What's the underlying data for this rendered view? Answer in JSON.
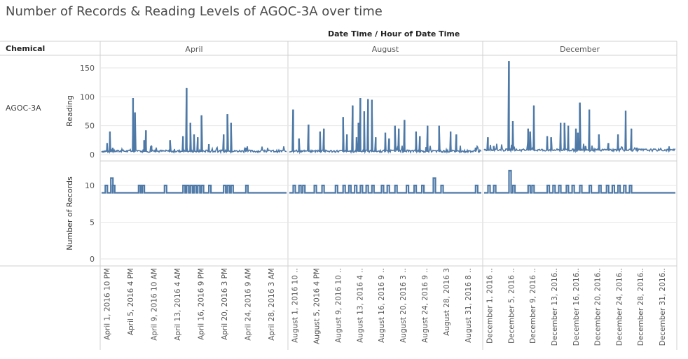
{
  "title": "Number of Records & Reading Levels of AGOC-3A over time",
  "column_header": "Date Time",
  "column_subheader": "Hour of Date Time",
  "column_sep": "/",
  "row_header": "Chemical",
  "row_label": "AGOC-3A",
  "months": [
    "April",
    "August",
    "December"
  ],
  "colors": {
    "series": "#4e79a7",
    "grid": "#e6e6e6",
    "border": "#d0d0d0",
    "axis_text": "#555555"
  },
  "chart_data": [
    {
      "type": "line",
      "ylabel": "Reading",
      "yticks": [
        0,
        50,
        100,
        150
      ],
      "ylim": [
        0,
        160
      ],
      "panels": [
        {
          "month": "April",
          "x_ticks": [
            "April 1, 2016 10 PM",
            "April 5, 2016 4 PM",
            "April 9, 2016 10 AM",
            "April 13, 2016 4 AM",
            "April 16, 2016 9 PM",
            "April 20, 2016 3 PM",
            "April 24, 2016 9 AM",
            "April 28, 2016 3 AM"
          ],
          "baseline": 5,
          "spikes": [
            [
              0.03,
              20
            ],
            [
              0.045,
              40
            ],
            [
              0.06,
              12
            ],
            [
              0.17,
              98
            ],
            [
              0.18,
              73
            ],
            [
              0.23,
              25
            ],
            [
              0.24,
              42
            ],
            [
              0.27,
              15
            ],
            [
              0.37,
              25
            ],
            [
              0.44,
              32
            ],
            [
              0.46,
              115
            ],
            [
              0.48,
              55
            ],
            [
              0.5,
              35
            ],
            [
              0.52,
              30
            ],
            [
              0.54,
              68
            ],
            [
              0.58,
              18
            ],
            [
              0.66,
              35
            ],
            [
              0.68,
              70
            ],
            [
              0.7,
              55
            ],
            [
              0.78,
              12
            ]
          ]
        },
        {
          "month": "August",
          "x_ticks": [
            "August 1, 2016 10 ..",
            "August 5, 2016 4 PM",
            "August 9, 2016 10 ..",
            "August 13, 2016 4 ..",
            "August 16, 2016 9 ..",
            "August 20, 2016 3 ..",
            "August 24, 2016 9 ..",
            "August 28, 2016 3",
            "August 31, 2016 8 .."
          ],
          "baseline": 5,
          "spikes": [
            [
              0.02,
              78
            ],
            [
              0.05,
              28
            ],
            [
              0.1,
              52
            ],
            [
              0.16,
              40
            ],
            [
              0.18,
              45
            ],
            [
              0.28,
              65
            ],
            [
              0.3,
              35
            ],
            [
              0.33,
              85
            ],
            [
              0.35,
              30
            ],
            [
              0.36,
              55
            ],
            [
              0.37,
              98
            ],
            [
              0.39,
              75
            ],
            [
              0.41,
              96
            ],
            [
              0.43,
              95
            ],
            [
              0.45,
              30
            ],
            [
              0.5,
              38
            ],
            [
              0.52,
              28
            ],
            [
              0.55,
              50
            ],
            [
              0.57,
              45
            ],
            [
              0.6,
              60
            ],
            [
              0.66,
              40
            ],
            [
              0.68,
              32
            ],
            [
              0.72,
              50
            ],
            [
              0.78,
              50
            ],
            [
              0.84,
              40
            ],
            [
              0.87,
              35
            ],
            [
              0.97,
              12
            ]
          ]
        },
        {
          "month": "December",
          "x_ticks": [
            "December 1, 2016 ..",
            "December 5, 2016 ..",
            "December 9, 2016 ..",
            "December 13, 2016..",
            "December 16, 2016..",
            "December 20, 2016..",
            "December 24, 2016..",
            "December 28, 2016..",
            "December 31, 2016.."
          ],
          "baseline": 7,
          "spikes": [
            [
              0.02,
              30
            ],
            [
              0.05,
              15
            ],
            [
              0.13,
              162
            ],
            [
              0.15,
              58
            ],
            [
              0.23,
              45
            ],
            [
              0.24,
              40
            ],
            [
              0.26,
              85
            ],
            [
              0.33,
              32
            ],
            [
              0.35,
              30
            ],
            [
              0.4,
              55
            ],
            [
              0.42,
              55
            ],
            [
              0.44,
              50
            ],
            [
              0.48,
              45
            ],
            [
              0.49,
              38
            ],
            [
              0.5,
              90
            ],
            [
              0.53,
              15
            ],
            [
              0.55,
              78
            ],
            [
              0.6,
              35
            ],
            [
              0.65,
              20
            ],
            [
              0.7,
              35
            ],
            [
              0.74,
              76
            ],
            [
              0.77,
              45
            ],
            [
              0.8,
              12
            ]
          ]
        }
      ]
    },
    {
      "type": "line",
      "ylabel": "Number of Records",
      "yticks": [
        0,
        5,
        10
      ],
      "ylim": [
        0,
        12.5
      ],
      "panels": [
        {
          "month": "April",
          "baseline": 9,
          "steps": [
            [
              0.02,
              10
            ],
            [
              0.05,
              11
            ],
            [
              0.06,
              10
            ],
            [
              0.2,
              10
            ],
            [
              0.21,
              10
            ],
            [
              0.22,
              10
            ],
            [
              0.34,
              10
            ],
            [
              0.44,
              10
            ],
            [
              0.46,
              10
            ],
            [
              0.48,
              10
            ],
            [
              0.5,
              10
            ],
            [
              0.52,
              10
            ],
            [
              0.54,
              10
            ],
            [
              0.58,
              10
            ],
            [
              0.66,
              10
            ],
            [
              0.68,
              10
            ],
            [
              0.7,
              10
            ],
            [
              0.78,
              10
            ]
          ]
        },
        {
          "month": "August",
          "baseline": 9,
          "steps": [
            [
              0.02,
              10
            ],
            [
              0.05,
              10
            ],
            [
              0.07,
              10
            ],
            [
              0.13,
              10
            ],
            [
              0.17,
              10
            ],
            [
              0.24,
              10
            ],
            [
              0.28,
              10
            ],
            [
              0.31,
              10
            ],
            [
              0.34,
              10
            ],
            [
              0.37,
              10
            ],
            [
              0.4,
              10
            ],
            [
              0.43,
              10
            ],
            [
              0.48,
              10
            ],
            [
              0.51,
              10
            ],
            [
              0.55,
              10
            ],
            [
              0.61,
              10
            ],
            [
              0.65,
              10
            ],
            [
              0.69,
              10
            ],
            [
              0.75,
              11
            ],
            [
              0.79,
              10
            ],
            [
              0.97,
              10
            ]
          ]
        },
        {
          "month": "December",
          "baseline": 9,
          "steps": [
            [
              0.02,
              10
            ],
            [
              0.05,
              10
            ],
            [
              0.13,
              12
            ],
            [
              0.15,
              10
            ],
            [
              0.23,
              10
            ],
            [
              0.25,
              10
            ],
            [
              0.33,
              10
            ],
            [
              0.36,
              10
            ],
            [
              0.39,
              10
            ],
            [
              0.43,
              10
            ],
            [
              0.46,
              10
            ],
            [
              0.5,
              10
            ],
            [
              0.55,
              10
            ],
            [
              0.6,
              10
            ],
            [
              0.64,
              10
            ],
            [
              0.67,
              10
            ],
            [
              0.7,
              10
            ],
            [
              0.73,
              10
            ],
            [
              0.76,
              10
            ]
          ]
        }
      ]
    }
  ]
}
